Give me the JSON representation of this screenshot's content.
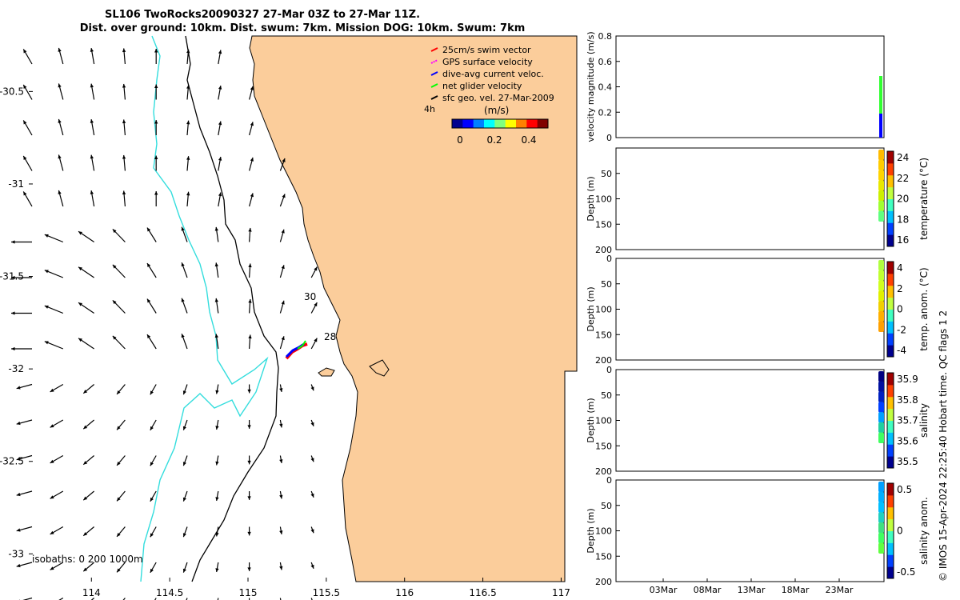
{
  "title": {
    "line1": "SL106 TwoRocks20090327 27-Mar 03Z to 27-Mar 11Z.",
    "line2": "Dist. over ground: 10km. Dist. swum: 7km. Mission DOG: 10km. Swum: 7km"
  },
  "chart_data": [
    {
      "type": "map",
      "name": "glider-track-map",
      "xlim": [
        113.6,
        117.1
      ],
      "ylim": [
        -33.15,
        -30.2
      ],
      "xticks": [
        "114",
        "114.5",
        "115",
        "115.5",
        "116",
        "116.5",
        "117"
      ],
      "yticks": [
        "-30.5",
        "-31",
        "-31.5",
        "-32",
        "-32.5",
        "-33"
      ],
      "legend": [
        {
          "label": "25cm/s swim vector",
          "color": "#ff0000"
        },
        {
          "label": "GPS surface velocity",
          "color": "#ff00ff"
        },
        {
          "label": "dive-avg current veloc.",
          "color": "#0000ff"
        },
        {
          "label": "net glider velocity",
          "color": "#00ff00"
        },
        {
          "label": "sfc geo. vel. 27-Mar-2009",
          "color": "#000000"
        }
      ],
      "colorbar_label": "(m/s)",
      "colorbar_ticks": [
        "0",
        "0.2",
        "0.4"
      ],
      "duration_label": "4h",
      "annotations": [
        "30",
        "28"
      ],
      "isobaths_label": "isobaths: 0   200 1000m",
      "land_color": "#fbcd9b",
      "isobath_color": "#33dddd"
    },
    {
      "type": "scatter",
      "name": "velocity-magnitude",
      "ylabel": "velocity magnitude (m/s)",
      "yticks": [
        "0",
        "0.2",
        "0.4",
        "0.6",
        "0.8"
      ],
      "ylim": [
        0,
        0.8
      ]
    },
    {
      "type": "scatter",
      "name": "temperature-section",
      "ylabel": "Depth (m)",
      "yticks": [
        "50",
        "100",
        "150",
        "200"
      ],
      "colorbar_label": "temperature (°C)",
      "colorbar_ticks": [
        "16",
        "18",
        "20",
        "22",
        "24"
      ]
    },
    {
      "type": "scatter",
      "name": "temp-anomaly-section",
      "ylabel": "Depth (m)",
      "yticks": [
        "0",
        "50",
        "100",
        "150",
        "200"
      ],
      "colorbar_label": "temp. anom. (°C)",
      "colorbar_ticks": [
        "-4",
        "-2",
        "0",
        "2",
        "4"
      ]
    },
    {
      "type": "scatter",
      "name": "salinity-section",
      "ylabel": "Depth (m)",
      "yticks": [
        "0",
        "50",
        "100",
        "150",
        "200"
      ],
      "colorbar_label": "salinity",
      "colorbar_ticks": [
        "35.5",
        "35.6",
        "35.7",
        "35.8",
        "35.9"
      ]
    },
    {
      "type": "scatter",
      "name": "salinity-anomaly-section",
      "ylabel": "Depth (m)",
      "yticks": [
        "0",
        "50",
        "100",
        "150",
        "200"
      ],
      "colorbar_label": "salinity anom.",
      "colorbar_ticks": [
        "-0.5",
        "0",
        "0.5"
      ],
      "xticks": [
        "03Mar",
        "08Mar",
        "13Mar",
        "18Mar",
        "23Mar"
      ]
    }
  ],
  "footer": "© IMOS 15-Apr-2024 22:25:40 Hobart time. QC flags 1  2"
}
